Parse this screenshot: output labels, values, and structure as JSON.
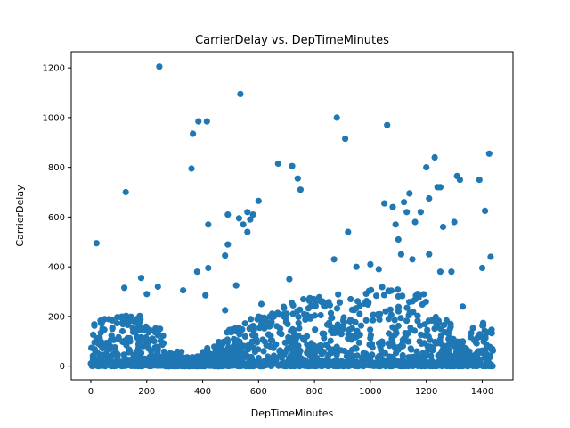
{
  "chart_data": {
    "type": "scatter",
    "title": "CarrierDelay vs. DepTimeMinutes",
    "xlabel": "DepTimeMinutes",
    "ylabel": "CarrierDelay",
    "xlim": [
      -70,
      1510
    ],
    "ylim": [
      -55,
      1265
    ],
    "xticks": [
      0,
      200,
      400,
      600,
      800,
      1000,
      1200,
      1400
    ],
    "yticks": [
      0,
      200,
      400,
      600,
      800,
      1000,
      1200
    ],
    "grid": false,
    "legend": "none",
    "color": "#1f77b4",
    "outliers": [
      [
        20,
        495
      ],
      [
        125,
        700
      ],
      [
        245,
        1205
      ],
      [
        360,
        795
      ],
      [
        365,
        935
      ],
      [
        385,
        985
      ],
      [
        415,
        985
      ],
      [
        420,
        570
      ],
      [
        480,
        445
      ],
      [
        490,
        610
      ],
      [
        490,
        490
      ],
      [
        535,
        1095
      ],
      [
        530,
        595
      ],
      [
        560,
        620
      ],
      [
        570,
        590
      ],
      [
        580,
        610
      ],
      [
        600,
        665
      ],
      [
        560,
        540
      ],
      [
        545,
        570
      ],
      [
        670,
        815
      ],
      [
        720,
        805
      ],
      [
        740,
        755
      ],
      [
        750,
        710
      ],
      [
        880,
        1000
      ],
      [
        910,
        915
      ],
      [
        920,
        540
      ],
      [
        1060,
        970
      ],
      [
        1050,
        655
      ],
      [
        1080,
        640
      ],
      [
        1090,
        570
      ],
      [
        1100,
        510
      ],
      [
        1120,
        660
      ],
      [
        1130,
        620
      ],
      [
        1140,
        695
      ],
      [
        1160,
        580
      ],
      [
        1180,
        620
      ],
      [
        1200,
        800
      ],
      [
        1210,
        675
      ],
      [
        1230,
        840
      ],
      [
        1240,
        720
      ],
      [
        1250,
        720
      ],
      [
        1260,
        560
      ],
      [
        1300,
        580
      ],
      [
        1310,
        765
      ],
      [
        1320,
        750
      ],
      [
        1390,
        750
      ],
      [
        1410,
        625
      ],
      [
        1425,
        855
      ],
      [
        1430,
        440
      ],
      [
        1400,
        395
      ],
      [
        120,
        315
      ],
      [
        180,
        355
      ],
      [
        200,
        290
      ],
      [
        240,
        320
      ],
      [
        330,
        305
      ],
      [
        380,
        380
      ],
      [
        420,
        395
      ],
      [
        410,
        285
      ],
      [
        480,
        225
      ],
      [
        520,
        325
      ],
      [
        610,
        250
      ],
      [
        710,
        350
      ],
      [
        870,
        430
      ],
      [
        950,
        400
      ],
      [
        1000,
        410
      ],
      [
        1030,
        390
      ],
      [
        1110,
        450
      ],
      [
        1150,
        430
      ],
      [
        1210,
        450
      ],
      [
        1250,
        380
      ],
      [
        1290,
        380
      ],
      [
        1330,
        240
      ]
    ]
  }
}
